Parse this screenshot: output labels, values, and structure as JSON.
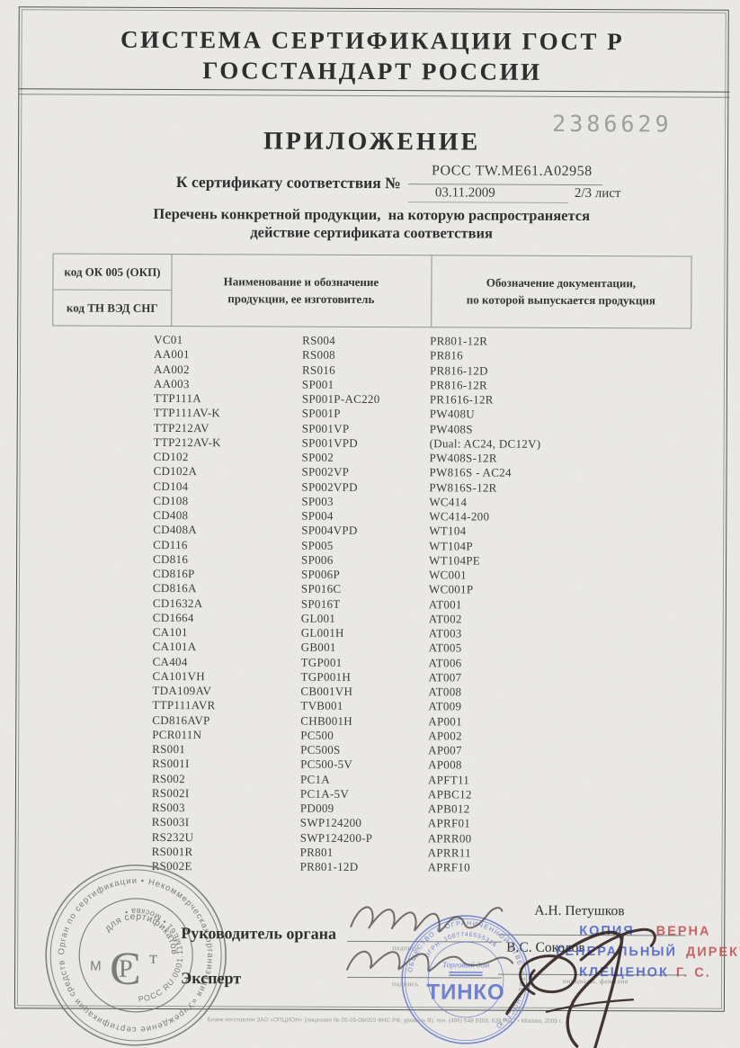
{
  "header": {
    "title_line1": "СИСТЕМА СЕРТИФИКАЦИИ ГОСТ Р",
    "title_line2": "ГОССТАНДАРТ РОССИИ"
  },
  "form_number": "2386629",
  "appendix": {
    "title": "ПРИЛОЖЕНИЕ",
    "cert_label": "К сертификату соответствия №",
    "cert_number": "РОСС TW.ME61.A02958",
    "cert_date": "03.11.2009",
    "sheet": "2/3 лист",
    "subtitle_line1": "Перечень конкретной продукции,  на которую распространяется",
    "subtitle_line2": "действие сертификата соответствия"
  },
  "table": {
    "col1_header_top": "код ОК 005 (ОКП)",
    "col1_header_bottom": "код ТН ВЭД СНГ",
    "col2_header_line1": "Наименование и обозначение",
    "col2_header_line2": "продукции, ее изготовитель",
    "col3_header_line1": "Обозначение документации,",
    "col3_header_line2": "по которой выпускается продукция",
    "products_col1": [
      "VC01",
      "AA001",
      "AA002",
      "AA003",
      "TTP111A",
      "TTP111AV-K",
      "TTP212AV",
      "TTP212AV-K",
      "CD102",
      "CD102A",
      "CD104",
      "CD108",
      "CD408",
      "CD408A",
      "CD116",
      "CD816",
      "CD816P",
      "CD816A",
      "CD1632A",
      "CD1664",
      "CA101",
      "CA101A",
      "CA404",
      "CA101VH",
      "TDA109AV",
      "TTP111AVR",
      "CD816AVP",
      "PCR011N",
      "RS001",
      "RS001I",
      "RS002",
      "RS002I",
      "RS003",
      "RS003I",
      "RS232U",
      "RS001R",
      "RS002E"
    ],
    "products_col2": [
      "RS004",
      "RS008",
      "RS016",
      "SP001",
      "SP001P-AC220",
      "SP001P",
      "SP001VP",
      "SP001VPD",
      "SP002",
      "SP002VP",
      "SP002VPD",
      "SP003",
      "SP004",
      "SP004VPD",
      "SP005",
      "SP006",
      "SP006P",
      "SP016C",
      "SP016T",
      "GL001",
      "GL001H",
      "GB001",
      "TGP001",
      "TGP001H",
      "CB001VH",
      "TVB001",
      "CHB001H",
      "PC500",
      "PC500S",
      "PC500-5V",
      "PC1A",
      "PC1A-5V",
      "PD009",
      "SWP124200",
      "SWP124200-P",
      "PR801",
      "PR801-12D"
    ],
    "products_col3": [
      "PR801-12R",
      "PR816",
      "PR816-12D",
      "PR816-12R",
      "PR1616-12R",
      "PW408U",
      "PW408S",
      "(Dual: AC24, DC12V)",
      "PW408S-12R",
      "PW816S - AC24",
      "PW816S-12R",
      "WC414",
      "WC414-200",
      "WT104",
      "WT104P",
      "WT104PE",
      "WC001",
      "WC001P",
      "AT001",
      "AT002",
      "AT003",
      "AT005",
      "AT006",
      "AT007",
      "AT008",
      "AT009",
      "AP001",
      "AP002",
      "AP007",
      "AP008",
      "APFT11",
      "APBC12",
      "APB012",
      "APRF01",
      "APRR00",
      "APRR11",
      "APRF10"
    ]
  },
  "signatures": {
    "head_label": "Руководитель органа",
    "expert_label": "Эксперт",
    "signature_caption": "подпись",
    "name_caption": "инициалы, фамилия",
    "head_name": "А.Н. Петушков",
    "expert_name": "В.С. Соколов"
  },
  "org_stamp": {
    "outer_text": "Орган по сертификации • Некоммерческая организация «Учреждение сертификации средств и услуг «МИНТИСЕРТИФИКА» •",
    "inner_bottom_text": "РОСС RU.0001.11МЕ61 • Москва •",
    "center_top_text": "для сертификатов",
    "logo_letter_left": "М",
    "logo_p": "Р",
    "logo_c": "С",
    "logo_t": "т"
  },
  "company_stamp": {
    "outer_text": "ОБЩЕСТВО С ОГРАНИЧЕННОЙ ОТВЕТСТВЕННОСТЬЮ",
    "ogrn_text": "ОГРН: 1087746555316",
    "center_line1": "Торговый дом",
    "center_line2": "ТИНКО"
  },
  "copy_stamp": {
    "line1_blue": "КОПИЯ",
    "line1_red": "ВЕРНА",
    "line2_blue": "ГЕНЕРАЛЬНЫЙ",
    "line2_red": "ДИРЕКТОР",
    "line3_blue": "КЛЕЩЕНОК",
    "line3_red": "Г. С.",
    "blue_color": "#4a63c8",
    "red_color": "#c4504e"
  },
  "footer_fine_print": "Бланк изготовлен ЗАО «ОПЦИОН» (лицензия № 05-05-09/003 ФНС РФ, уровень В), тел. (495) 548 8368, 638 7617 • Москва, 2009 г."
}
